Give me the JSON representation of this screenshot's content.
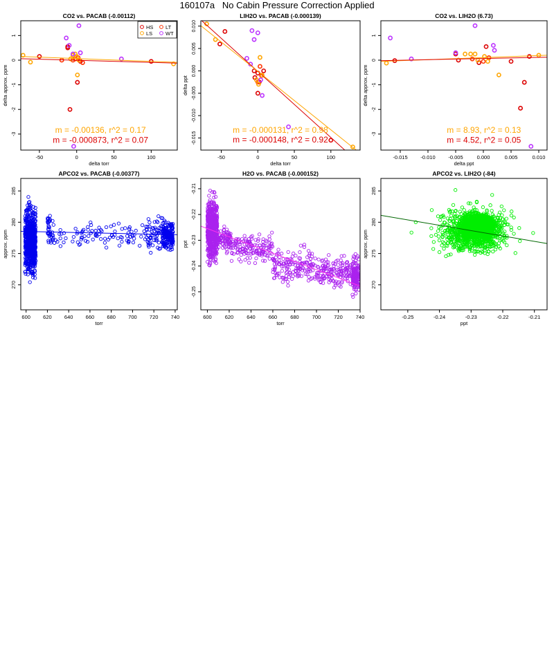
{
  "page": {
    "title": "160107a   No Cabin Pressure Correction Applied"
  },
  "chart_data": [
    {
      "type": "scatter",
      "title": "CO2 vs. PACAB (-0.00112)",
      "xlabel": "delta torr",
      "ylabel": "delta approx. ppm",
      "xlim": [
        -75,
        135
      ],
      "ylim": [
        -3.65,
        1.6
      ],
      "xticks": [
        -50,
        0,
        50,
        100
      ],
      "xtick_labels": [
        "-50",
        "0",
        "50",
        "100"
      ],
      "yticks": [
        -3,
        -2,
        -1,
        0,
        1
      ],
      "ytick_labels": [
        "-3",
        "-2",
        "-1",
        "0",
        "1"
      ],
      "grid": false,
      "legend": {
        "placement": "top-right",
        "entries": [
          {
            "label": "HS",
            "color": "#dd0000"
          },
          {
            "label": "LT",
            "color": "#ff3300"
          },
          {
            "label": "LS",
            "color": "#ffa500"
          },
          {
            "label": "WT",
            "color": "#bb33ff"
          }
        ]
      },
      "series": [
        {
          "color": "#dd0000",
          "points": [
            [
              -12,
              0.55
            ],
            [
              -50,
              0.15
            ],
            [
              -12,
              0.5
            ],
            [
              5,
              -0.05
            ],
            [
              100,
              -0.05
            ],
            [
              -9,
              -2.0
            ],
            [
              1,
              -0.9
            ]
          ]
        },
        {
          "color": "#ff3300",
          "points": [
            [
              -20,
              0.0
            ],
            [
              -5,
              0.0
            ],
            [
              2,
              0.1
            ],
            [
              -2,
              0.05
            ],
            [
              8,
              -0.1
            ]
          ]
        },
        {
          "color": "#ffa500",
          "points": [
            [
              -72,
              0.2
            ],
            [
              -62,
              -0.08
            ],
            [
              -5,
              0.2
            ],
            [
              -2,
              0.25
            ],
            [
              0,
              0.15
            ],
            [
              1,
              -0.6
            ],
            [
              3,
              0.0
            ],
            [
              130,
              -0.15
            ],
            [
              -8,
              0.05
            ]
          ]
        },
        {
          "color": "#bb33ff",
          "points": [
            [
              -14,
              0.9
            ],
            [
              3,
              1.4
            ],
            [
              5,
              0.3
            ],
            [
              -5,
              0.25
            ],
            [
              60,
              0.05
            ],
            [
              -4,
              -3.5
            ],
            [
              -10,
              0.6
            ]
          ]
        }
      ],
      "fit_lines": [
        {
          "color": "#ffa500",
          "from": [
            -75,
            0.15
          ],
          "to": [
            135,
            -0.09
          ]
        },
        {
          "color": "#dd0000",
          "from": [
            -75,
            0.06
          ],
          "to": [
            135,
            -0.12
          ]
        }
      ],
      "annotations": [
        {
          "text": "m = -0.00136, r^2 = 0.17",
          "color": "#ffa500",
          "at": [
            32,
            -2.95
          ]
        },
        {
          "text": "m = -0.000873, r^2 = 0.07",
          "color": "#dd0000",
          "at": [
            32,
            -3.35
          ]
        }
      ]
    },
    {
      "type": "scatter",
      "title": "LIH2O vs. PACAB (-0.000139)",
      "xlabel": "delta torr",
      "ylabel": "delta ppt",
      "xlim": [
        -78,
        140
      ],
      "ylim": [
        -0.0177,
        0.0112
      ],
      "xticks": [
        -50,
        0,
        50,
        100
      ],
      "xtick_labels": [
        "-50",
        "0",
        "50",
        "100"
      ],
      "yticks": [
        -0.015,
        -0.01,
        -0.005,
        0.0,
        0.005,
        0.01
      ],
      "ytick_labels": [
        "-0.015",
        "-0.010",
        "-0.005",
        "0.000",
        "0.005",
        "0.010"
      ],
      "grid": false,
      "legend": null,
      "series": [
        {
          "color": "#dd0000",
          "points": [
            [
              -45,
              0.0088
            ],
            [
              -52,
              0.006
            ],
            [
              -5,
              0.0
            ],
            [
              0,
              -0.0005
            ],
            [
              2,
              -0.0025
            ],
            [
              8,
              0.0
            ],
            [
              0,
              -0.005
            ],
            [
              100,
              -0.0155
            ],
            [
              -4,
              -0.0015
            ]
          ]
        },
        {
          "color": "#ff3300",
          "points": [
            [
              5,
              -0.001
            ],
            [
              3,
              0.001
            ],
            [
              0,
              -0.0025
            ]
          ]
        },
        {
          "color": "#ffa500",
          "points": [
            [
              -70,
              0.0105
            ],
            [
              -58,
              0.007
            ],
            [
              -2,
              -0.002
            ],
            [
              3,
              0.003
            ],
            [
              6,
              -0.001
            ],
            [
              130,
              -0.017
            ],
            [
              1,
              -0.003
            ]
          ]
        },
        {
          "color": "#bb33ff",
          "points": [
            [
              -8,
              0.009
            ],
            [
              -10,
              0.0015
            ],
            [
              -5,
              0.007
            ],
            [
              0,
              0.0085
            ],
            [
              6,
              -0.0055
            ],
            [
              42,
              -0.0125
            ],
            [
              -15,
              0.0028
            ],
            [
              4,
              -0.002
            ]
          ]
        }
      ],
      "fit_lines": [
        {
          "color": "#dd0000",
          "from": [
            -78,
            0.0114
          ],
          "to": [
            140,
            -0.0208
          ]
        },
        {
          "color": "#ffa500",
          "from": [
            -78,
            0.0101
          ],
          "to": [
            140,
            -0.0184
          ]
        }
      ],
      "annotations": [
        {
          "text": "m = -0.000131, r^2 = 0.98",
          "color": "#ffa500",
          "at": [
            31,
            -0.0138
          ]
        },
        {
          "text": "m = -0.000148, r^2 = 0.92",
          "color": "#dd0000",
          "at": [
            31,
            -0.016
          ]
        }
      ]
    },
    {
      "type": "scatter",
      "title": "CO2 vs. LIH2O (6.73)",
      "xlabel": "delta ppt",
      "ylabel": "delta approx. ppm",
      "xlim": [
        -0.0185,
        0.0115
      ],
      "ylim": [
        -3.65,
        1.6
      ],
      "xticks": [
        -0.015,
        -0.01,
        -0.005,
        0.0,
        0.005,
        0.01
      ],
      "xtick_labels": [
        "-0.015",
        "-0.010",
        "-0.005",
        "0.000",
        "0.005",
        "0.010"
      ],
      "yticks": [
        -3,
        -2,
        -1,
        0,
        1
      ],
      "ytick_labels": [
        "-3",
        "-2",
        "-1",
        "0",
        "1"
      ],
      "grid": false,
      "legend": null,
      "series": [
        {
          "color": "#dd0000",
          "points": [
            [
              -0.016,
              -0.02
            ],
            [
              -0.005,
              0.25
            ],
            [
              0.0005,
              0.55
            ],
            [
              0.0083,
              0.15
            ],
            [
              0.005,
              -0.05
            ],
            [
              0.0067,
              -1.95
            ],
            [
              0.0074,
              -0.9
            ],
            [
              -0.0008,
              -0.1
            ],
            [
              -0.0045,
              0.0
            ]
          ]
        },
        {
          "color": "#ff3300",
          "points": [
            [
              0.0,
              -0.05
            ],
            [
              0.001,
              0.1
            ],
            [
              -0.002,
              0.05
            ]
          ]
        },
        {
          "color": "#ffa500",
          "points": [
            [
              -0.0175,
              -0.12
            ],
            [
              0.01,
              0.2
            ],
            [
              -0.0023,
              0.25
            ],
            [
              -0.0033,
              0.25
            ],
            [
              -0.0015,
              0.25
            ],
            [
              0.0002,
              0.15
            ],
            [
              0.0028,
              -0.6
            ],
            [
              -0.001,
              0.0
            ],
            [
              0.0008,
              -0.05
            ]
          ]
        },
        {
          "color": "#bb33ff",
          "points": [
            [
              -0.0168,
              0.9
            ],
            [
              -0.0015,
              1.4
            ],
            [
              0.0018,
              0.6
            ],
            [
              -0.005,
              0.3
            ],
            [
              -0.013,
              0.05
            ],
            [
              0.0086,
              -3.5
            ],
            [
              0.002,
              0.4
            ]
          ]
        }
      ],
      "fit_lines": [
        {
          "color": "#ffa500",
          "from": [
            -0.0185,
            -0.05
          ],
          "to": [
            0.0115,
            0.2
          ]
        },
        {
          "color": "#dd0000",
          "from": [
            -0.0185,
            -0.02
          ],
          "to": [
            0.0115,
            0.12
          ]
        }
      ],
      "annotations": [
        {
          "text": "m = 8.93, r^2 = 0.13",
          "color": "#ffa500",
          "at": [
            0.0001,
            -2.95
          ]
        },
        {
          "text": "m = 4.52, r^2 = 0.05",
          "color": "#dd0000",
          "at": [
            0.0001,
            -3.35
          ]
        }
      ]
    },
    {
      "type": "scatter",
      "title": "APCO2 vs. PACAB (-0.00377)",
      "xlabel": "torr",
      "ylabel": "approx. ppm",
      "xlim": [
        595,
        742
      ],
      "ylim": [
        266,
        287
      ],
      "xticks": [
        600,
        620,
        640,
        660,
        680,
        700,
        720,
        740
      ],
      "xtick_labels": [
        "600",
        "620",
        "640",
        "660",
        "680",
        "700",
        "720",
        "740"
      ],
      "yticks": [
        270,
        275,
        280,
        285
      ],
      "ytick_labels": [
        "270",
        "275",
        "280",
        "285"
      ],
      "grid": false,
      "legend": null,
      "series": [
        {
          "color": "#0000ee",
          "clusters": [
            {
              "x": [
                599,
                609
              ],
              "y": [
                269,
                285
              ],
              "count": 700
            },
            {
              "x": [
                602,
                607
              ],
              "y": [
                266,
                287
              ],
              "count": 40
            },
            {
              "x": [
                620,
                625
              ],
              "y": [
                275,
                283
              ],
              "count": 35
            },
            {
              "x": [
                625,
                728
              ],
              "y": [
                275,
                281
              ],
              "count": 110
            },
            {
              "x": [
                712,
                728
              ],
              "y": [
                272,
                284
              ],
              "count": 45
            },
            {
              "x": [
                728,
                738
              ],
              "y": [
                274,
                282
              ],
              "count": 180
            }
          ]
        }
      ],
      "fit_lines": [
        {
          "color": "#0000ee",
          "from": [
            595,
            278.55
          ],
          "to": [
            742,
            278.0
          ]
        }
      ],
      "annotations": []
    },
    {
      "type": "scatter",
      "title": "H2O vs. PACAB (-0.000152)",
      "xlabel": "torr",
      "ylabel": "ppt",
      "xlim": [
        594,
        740
      ],
      "ylim": [
        -0.257,
        -0.206
      ],
      "xticks": [
        600,
        620,
        640,
        660,
        680,
        700,
        720,
        740
      ],
      "xtick_labels": [
        "600",
        "620",
        "640",
        "660",
        "680",
        "700",
        "720",
        "740"
      ],
      "yticks": [
        -0.25,
        -0.24,
        -0.23,
        -0.22,
        -0.21
      ],
      "ytick_labels": [
        "-0.25",
        "-0.24",
        "-0.23",
        "-0.22",
        "-0.21"
      ],
      "grid": false,
      "legend": null,
      "series": [
        {
          "color": "#aa22ee",
          "clusters": [
            {
              "x": [
                600,
                609
              ],
              "y": [
                -0.244,
                -0.208
              ],
              "count": 650
            },
            {
              "x": [
                609,
                622
              ],
              "y": [
                -0.237,
                -0.222
              ],
              "count": 90
            },
            {
              "x": [
                622,
                660
              ],
              "y": [
                -0.242,
                -0.224
              ],
              "count": 150
            },
            {
              "x": [
                660,
                700
              ],
              "y": [
                -0.25,
                -0.23
              ],
              "count": 160
            },
            {
              "x": [
                700,
                733
              ],
              "y": [
                -0.252,
                -0.232
              ],
              "count": 150
            },
            {
              "x": [
                733,
                739
              ],
              "y": [
                -0.256,
                -0.232
              ],
              "count": 150
            }
          ]
        }
      ],
      "fit_lines": [
        {
          "color": "#ff33ee",
          "from": [
            594,
            -0.2245
          ],
          "to": [
            740,
            -0.2478
          ]
        }
      ],
      "annotations": []
    },
    {
      "type": "scatter",
      "title": "APCO2 vs. LIH2O (-84)",
      "xlabel": "ppt",
      "ylabel": "approx. ppm",
      "xlim": [
        -0.2585,
        -0.206
      ],
      "ylim": [
        266,
        287
      ],
      "xticks": [
        -0.25,
        -0.24,
        -0.23,
        -0.22,
        -0.21
      ],
      "xtick_labels": [
        "-0.25",
        "-0.24",
        "-0.23",
        "-0.22",
        "-0.21"
      ],
      "yticks": [
        270,
        275,
        280,
        285
      ],
      "ytick_labels": [
        "270",
        "275",
        "280",
        "285"
      ],
      "grid": false,
      "legend": null,
      "series": [
        {
          "color": "#00ee00",
          "clusters": [
            {
              "ellipse": true,
              "center": [
                -0.2275,
                279.5
              ],
              "radius": [
                0.0085,
                2.8
              ],
              "count": 1200
            },
            {
              "ellipse": true,
              "center": [
                -0.229,
                278.5
              ],
              "radius": [
                0.016,
                5.0
              ],
              "count": 800
            },
            {
              "ellipse": true,
              "center": [
                -0.23,
                279.0
              ],
              "radius": [
                0.024,
                7.5
              ],
              "count": 150
            }
          ]
        }
      ],
      "fit_lines": [
        {
          "color": "#006600",
          "from": [
            -0.2585,
            281.1
          ],
          "to": [
            -0.206,
            276.6
          ]
        }
      ],
      "annotations": []
    }
  ]
}
